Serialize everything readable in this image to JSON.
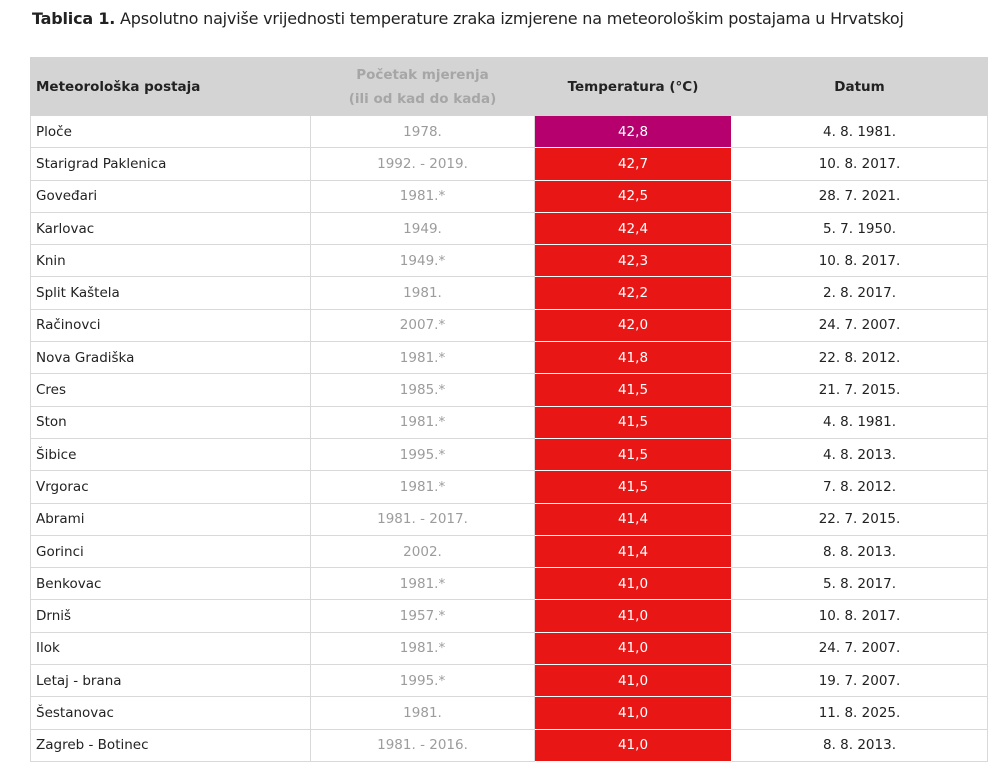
{
  "caption": {
    "label": "Tablica 1.",
    "text": "Apsolutno najviše vrijednosti temperature zraka izmjerene na meteorološkim postajama u Hrvatskoj"
  },
  "colors": {
    "header_bg": "#d4d4d4",
    "record_highlight": "#b5006e",
    "temperature_cell": "#e91616"
  },
  "table": {
    "headers": {
      "station": "Meteorološka postaja",
      "period_line1": "Početak mjerenja",
      "period_line2": "(ili od kad do kada)",
      "temperature": "Temperatura (°C)",
      "date": "Datum"
    },
    "rows": [
      {
        "station": "Ploče",
        "period": "1978.",
        "temperature": "42,8",
        "date": "4. 8. 1981.",
        "highlight": true
      },
      {
        "station": "Starigrad Paklenica",
        "period": "1992. - 2019.",
        "temperature": "42,7",
        "date": "10. 8. 2017."
      },
      {
        "station": "Goveđari",
        "period": "1981.*",
        "temperature": "42,5",
        "date": "28. 7. 2021."
      },
      {
        "station": "Karlovac",
        "period": "1949.",
        "temperature": "42,4",
        "date": "5. 7. 1950."
      },
      {
        "station": "Knin",
        "period": "1949.*",
        "temperature": "42,3",
        "date": "10. 8. 2017."
      },
      {
        "station": "Split Kaštela",
        "period": "1981.",
        "temperature": "42,2",
        "date": "2. 8. 2017."
      },
      {
        "station": "Račinovci",
        "period": "2007.*",
        "temperature": "42,0",
        "date": "24. 7. 2007."
      },
      {
        "station": "Nova Gradiška",
        "period": "1981.*",
        "temperature": "41,8",
        "date": "22. 8. 2012."
      },
      {
        "station": "Cres",
        "period": "1985.*",
        "temperature": "41,5",
        "date": "21. 7. 2015."
      },
      {
        "station": "Ston",
        "period": "1981.*",
        "temperature": "41,5",
        "date": "4. 8. 1981."
      },
      {
        "station": "Šibice",
        "period": "1995.*",
        "temperature": "41,5",
        "date": "4. 8. 2013."
      },
      {
        "station": "Vrgorac",
        "period": "1981.*",
        "temperature": "41,5",
        "date": "7. 8. 2012."
      },
      {
        "station": "Abrami",
        "period": "1981. - 2017.",
        "temperature": "41,4",
        "date": "22. 7. 2015."
      },
      {
        "station": "Gorinci",
        "period": "2002.",
        "temperature": "41,4",
        "date": "8. 8. 2013."
      },
      {
        "station": "Benkovac",
        "period": "1981.*",
        "temperature": "41,0",
        "date": "5. 8. 2017."
      },
      {
        "station": "Drniš",
        "period": "1957.*",
        "temperature": "41,0",
        "date": "10. 8. 2017."
      },
      {
        "station": "Ilok",
        "period": "1981.*",
        "temperature": "41,0",
        "date": "24. 7. 2007."
      },
      {
        "station": "Letaj - brana",
        "period": "1995.*",
        "temperature": "41,0",
        "date": "19. 7. 2007."
      },
      {
        "station": "Šestanovac",
        "period": "1981.",
        "temperature": "41,0",
        "date": "11. 8. 2025."
      },
      {
        "station": "Zagreb - Botinec",
        "period": "1981. - 2016.",
        "temperature": "41,0",
        "date": "8. 8. 2013."
      }
    ]
  }
}
